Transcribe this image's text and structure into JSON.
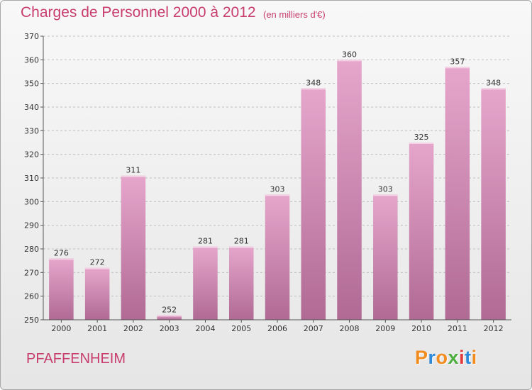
{
  "header": {
    "title": "Charges de Personnel 2000 à 2012",
    "subtitle": "(en milliers d'€)"
  },
  "footer": {
    "commune": "PFAFFENHEIM",
    "logo_text": "Proxiti"
  },
  "colors": {
    "accent": "#c83d6e",
    "bar_light": "#e6a6cc",
    "bar_dark": "#b06a94",
    "grid": "#bfbfbf",
    "logo_letters": [
      "#f28c1e",
      "#2e8ad8",
      "#f28c1e",
      "#4cae3e",
      "#e23a3a",
      "#2e8ad8",
      "#f28c1e"
    ]
  },
  "chart_data": {
    "type": "bar",
    "title": "Charges de Personnel 2000 à 2012",
    "subtitle": "(en milliers d'€)",
    "xlabel": "",
    "ylabel": "",
    "categories": [
      "2000",
      "2001",
      "2002",
      "2003",
      "2004",
      "2005",
      "2006",
      "2007",
      "2008",
      "2009",
      "2010",
      "2011",
      "2012"
    ],
    "values": [
      276,
      272,
      311,
      252,
      281,
      281,
      303,
      348,
      360,
      303,
      325,
      357,
      348
    ],
    "ylim": [
      250,
      370
    ],
    "yticks": [
      250,
      260,
      270,
      280,
      290,
      300,
      310,
      320,
      330,
      340,
      350,
      360,
      370
    ],
    "grid": true,
    "legend": "none"
  }
}
